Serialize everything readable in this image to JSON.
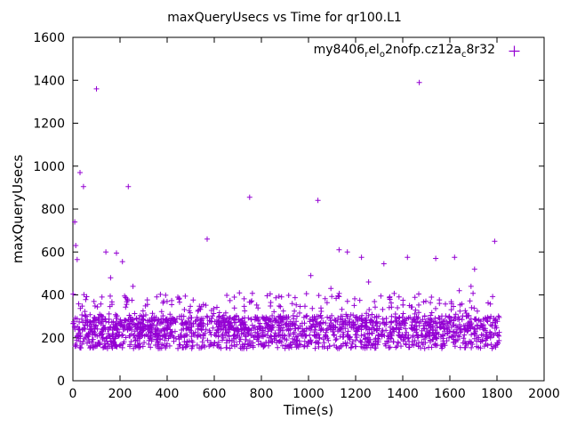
{
  "title": "maxQueryUsecs vs Time for qr100.L1",
  "xlabel": "Time(s)",
  "ylabel": "maxQueryUsecs",
  "legend": {
    "parts": [
      {
        "text": "my8406",
        "sub": false
      },
      {
        "text": "r",
        "sub": true
      },
      {
        "text": "el",
        "sub": false
      },
      {
        "text": "o",
        "sub": true
      },
      {
        "text": "2nofp.cz12a",
        "sub": false
      },
      {
        "text": "c",
        "sub": true
      },
      {
        "text": "8r32",
        "sub": false
      }
    ]
  },
  "colors": {
    "marker": "#9400d3",
    "axis": "#000000",
    "text": "#000000",
    "background": "#ffffff"
  },
  "chart_data": {
    "type": "scatter",
    "title": "maxQueryUsecs vs Time for qr100.L1",
    "xlabel": "Time(s)",
    "ylabel": "maxQueryUsecs",
    "series_name": "my8406_rel_o2nofp.cz12a_c8r32",
    "marker": "plus",
    "grid": false,
    "legend_position": "top-right-inside",
    "xlim": [
      0,
      2000
    ],
    "ylim": [
      0,
      1600
    ],
    "xticks": [
      0,
      200,
      400,
      600,
      800,
      1000,
      1200,
      1400,
      1600,
      1800,
      2000
    ],
    "yticks": [
      0,
      200,
      400,
      600,
      800,
      1000,
      1200,
      1400,
      1600
    ],
    "outliers": [
      [
        8,
        740
      ],
      [
        12,
        630
      ],
      [
        18,
        565
      ],
      [
        30,
        970
      ],
      [
        45,
        905
      ],
      [
        100,
        1360
      ],
      [
        140,
        600
      ],
      [
        160,
        480
      ],
      [
        185,
        595
      ],
      [
        210,
        555
      ],
      [
        235,
        905
      ],
      [
        255,
        440
      ],
      [
        570,
        660
      ],
      [
        750,
        855
      ],
      [
        1010,
        490
      ],
      [
        1040,
        840
      ],
      [
        1095,
        430
      ],
      [
        1130,
        610
      ],
      [
        1165,
        600
      ],
      [
        1225,
        575
      ],
      [
        1255,
        460
      ],
      [
        1320,
        545
      ],
      [
        1420,
        575
      ],
      [
        1470,
        1390
      ],
      [
        1540,
        570
      ],
      [
        1620,
        575
      ],
      [
        1640,
        420
      ],
      [
        1690,
        440
      ],
      [
        1705,
        520
      ],
      [
        1790,
        650
      ]
    ],
    "band": {
      "seed": 1337,
      "count": 1900,
      "x_min": 0,
      "x_max": 1810,
      "layers": [
        {
          "weight": 0.42,
          "y_min": 235,
          "y_max": 305
        },
        {
          "weight": 0.3,
          "y_min": 150,
          "y_max": 215
        },
        {
          "weight": 0.18,
          "y_min": 205,
          "y_max": 245
        },
        {
          "weight": 0.1,
          "y_min": 305,
          "y_max": 410
        }
      ]
    }
  }
}
